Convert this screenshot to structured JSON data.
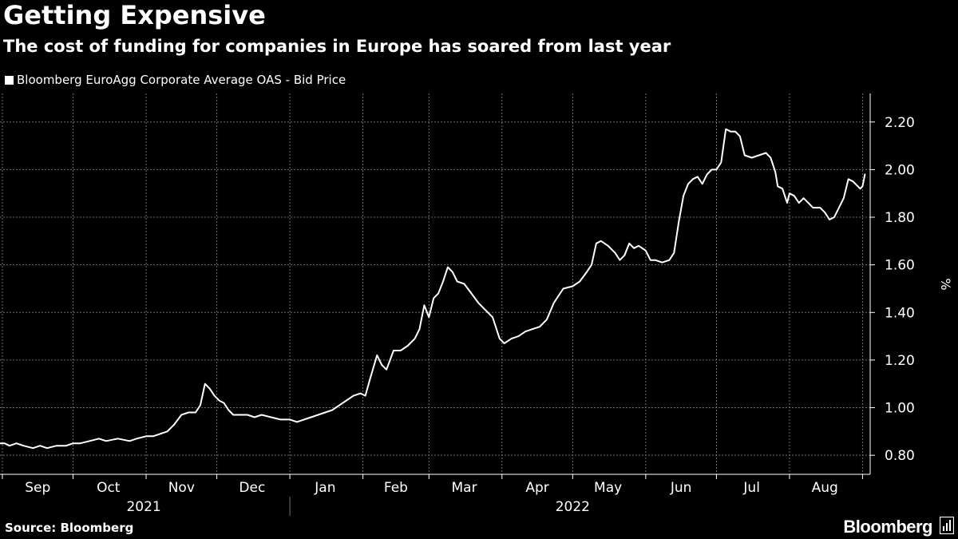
{
  "header": {
    "title": "Getting Expensive",
    "subtitle": "The cost of funding for companies in Europe has soared from last year"
  },
  "footer": {
    "source": "Source: Bloomberg",
    "brand": "Bloomberg"
  },
  "colors": {
    "background": "#000000",
    "line": "#ffffff",
    "grid": "#6e6e6e",
    "text": "#ffffff"
  },
  "chart_data": {
    "type": "line",
    "title": "Getting Expensive",
    "subtitle": "The cost of funding for companies in Europe has soared from last year",
    "ylabel": "%",
    "ylim": [
      0.72,
      2.32
    ],
    "y_ticks": [
      0.8,
      1.0,
      1.2,
      1.4,
      1.6,
      1.8,
      2.0,
      2.2
    ],
    "y_tick_labels": [
      "0.80",
      "1.00",
      "1.20",
      "1.40",
      "1.60",
      "1.80",
      "2.00",
      "2.20"
    ],
    "y_axis_position": "right",
    "x_range": [
      "2021-08-31",
      "2022-09-10"
    ],
    "x_month_ticks": [
      "2021-09-01",
      "2021-10-01",
      "2021-11-01",
      "2021-12-01",
      "2022-01-01",
      "2022-02-01",
      "2022-03-01",
      "2022-04-01",
      "2022-05-01",
      "2022-06-01",
      "2022-07-01",
      "2022-08-01",
      "2022-09-01"
    ],
    "x_month_labels": [
      {
        "label": "Sep",
        "mid": "2021-09-16"
      },
      {
        "label": "Oct",
        "mid": "2021-10-16"
      },
      {
        "label": "Nov",
        "mid": "2021-11-16"
      },
      {
        "label": "Dec",
        "mid": "2021-12-16"
      },
      {
        "label": "Jan",
        "mid": "2022-01-16"
      },
      {
        "label": "Feb",
        "mid": "2022-02-15"
      },
      {
        "label": "Mar",
        "mid": "2022-03-16"
      },
      {
        "label": "Apr",
        "mid": "2022-04-16"
      },
      {
        "label": "May",
        "mid": "2022-05-16"
      },
      {
        "label": "Jun",
        "mid": "2022-06-16"
      },
      {
        "label": "Jul",
        "mid": "2022-07-16"
      },
      {
        "label": "Aug",
        "mid": "2022-08-16"
      }
    ],
    "x_years": [
      {
        "label": "2021",
        "mid": "2021-10-31"
      },
      {
        "label": "2022",
        "mid": "2022-05-01"
      }
    ],
    "year_divider": "2022-01-01",
    "grid": true,
    "legend_position": "top-left",
    "series": [
      {
        "name": "Bloomberg EuroAgg Corporate Average OAS - Bid Price",
        "color": "#ffffff",
        "points": [
          [
            "2021-08-31",
            0.85
          ],
          [
            "2021-09-02",
            0.85
          ],
          [
            "2021-09-04",
            0.84
          ],
          [
            "2021-09-07",
            0.85
          ],
          [
            "2021-09-10",
            0.84
          ],
          [
            "2021-09-14",
            0.83
          ],
          [
            "2021-09-17",
            0.84
          ],
          [
            "2021-09-20",
            0.83
          ],
          [
            "2021-09-24",
            0.84
          ],
          [
            "2021-09-28",
            0.84
          ],
          [
            "2021-10-01",
            0.85
          ],
          [
            "2021-10-04",
            0.85
          ],
          [
            "2021-10-08",
            0.86
          ],
          [
            "2021-10-12",
            0.87
          ],
          [
            "2021-10-15",
            0.86
          ],
          [
            "2021-10-20",
            0.87
          ],
          [
            "2021-10-25",
            0.86
          ],
          [
            "2021-10-28",
            0.87
          ],
          [
            "2021-11-01",
            0.88
          ],
          [
            "2021-11-04",
            0.88
          ],
          [
            "2021-11-07",
            0.89
          ],
          [
            "2021-11-10",
            0.9
          ],
          [
            "2021-11-13",
            0.93
          ],
          [
            "2021-11-16",
            0.97
          ],
          [
            "2021-11-19",
            0.98
          ],
          [
            "2021-11-22",
            0.98
          ],
          [
            "2021-11-24",
            1.01
          ],
          [
            "2021-11-26",
            1.1
          ],
          [
            "2021-11-28",
            1.08
          ],
          [
            "2021-11-30",
            1.05
          ],
          [
            "2021-12-02",
            1.03
          ],
          [
            "2021-12-04",
            1.02
          ],
          [
            "2021-12-06",
            0.99
          ],
          [
            "2021-12-08",
            0.97
          ],
          [
            "2021-12-11",
            0.97
          ],
          [
            "2021-12-14",
            0.97
          ],
          [
            "2021-12-17",
            0.96
          ],
          [
            "2021-12-20",
            0.97
          ],
          [
            "2021-12-24",
            0.96
          ],
          [
            "2021-12-28",
            0.95
          ],
          [
            "2022-01-01",
            0.95
          ],
          [
            "2022-01-04",
            0.94
          ],
          [
            "2022-01-07",
            0.95
          ],
          [
            "2022-01-10",
            0.96
          ],
          [
            "2022-01-13",
            0.97
          ],
          [
            "2022-01-16",
            0.98
          ],
          [
            "2022-01-19",
            0.99
          ],
          [
            "2022-01-22",
            1.01
          ],
          [
            "2022-01-25",
            1.03
          ],
          [
            "2022-01-28",
            1.05
          ],
          [
            "2022-01-31",
            1.06
          ],
          [
            "2022-02-02",
            1.05
          ],
          [
            "2022-02-04",
            1.12
          ],
          [
            "2022-02-07",
            1.22
          ],
          [
            "2022-02-09",
            1.18
          ],
          [
            "2022-02-11",
            1.16
          ],
          [
            "2022-02-14",
            1.24
          ],
          [
            "2022-02-17",
            1.24
          ],
          [
            "2022-02-20",
            1.26
          ],
          [
            "2022-02-23",
            1.29
          ],
          [
            "2022-02-25",
            1.33
          ],
          [
            "2022-02-27",
            1.43
          ],
          [
            "2022-03-01",
            1.38
          ],
          [
            "2022-03-03",
            1.46
          ],
          [
            "2022-03-05",
            1.48
          ],
          [
            "2022-03-07",
            1.53
          ],
          [
            "2022-03-09",
            1.59
          ],
          [
            "2022-03-11",
            1.57
          ],
          [
            "2022-03-13",
            1.53
          ],
          [
            "2022-03-16",
            1.52
          ],
          [
            "2022-03-19",
            1.48
          ],
          [
            "2022-03-22",
            1.44
          ],
          [
            "2022-03-25",
            1.41
          ],
          [
            "2022-03-28",
            1.38
          ],
          [
            "2022-03-31",
            1.29
          ],
          [
            "2022-04-02",
            1.27
          ],
          [
            "2022-04-05",
            1.29
          ],
          [
            "2022-04-08",
            1.3
          ],
          [
            "2022-04-11",
            1.32
          ],
          [
            "2022-04-14",
            1.33
          ],
          [
            "2022-04-17",
            1.34
          ],
          [
            "2022-04-20",
            1.37
          ],
          [
            "2022-04-23",
            1.44
          ],
          [
            "2022-04-25",
            1.47
          ],
          [
            "2022-04-27",
            1.5
          ],
          [
            "2022-05-01",
            1.51
          ],
          [
            "2022-05-04",
            1.53
          ],
          [
            "2022-05-07",
            1.57
          ],
          [
            "2022-05-09",
            1.6
          ],
          [
            "2022-05-11",
            1.69
          ],
          [
            "2022-05-13",
            1.7
          ],
          [
            "2022-05-16",
            1.68
          ],
          [
            "2022-05-19",
            1.65
          ],
          [
            "2022-05-21",
            1.62
          ],
          [
            "2022-05-23",
            1.64
          ],
          [
            "2022-05-25",
            1.69
          ],
          [
            "2022-05-27",
            1.67
          ],
          [
            "2022-05-29",
            1.68
          ],
          [
            "2022-06-01",
            1.66
          ],
          [
            "2022-06-03",
            1.62
          ],
          [
            "2022-06-05",
            1.62
          ],
          [
            "2022-06-08",
            1.61
          ],
          [
            "2022-06-11",
            1.62
          ],
          [
            "2022-06-13",
            1.65
          ],
          [
            "2022-06-15",
            1.78
          ],
          [
            "2022-06-17",
            1.89
          ],
          [
            "2022-06-19",
            1.94
          ],
          [
            "2022-06-21",
            1.96
          ],
          [
            "2022-06-23",
            1.97
          ],
          [
            "2022-06-25",
            1.94
          ],
          [
            "2022-06-27",
            1.98
          ],
          [
            "2022-06-29",
            2.0
          ],
          [
            "2022-07-01",
            2.0
          ],
          [
            "2022-07-03",
            2.03
          ],
          [
            "2022-07-05",
            2.17
          ],
          [
            "2022-07-07",
            2.16
          ],
          [
            "2022-07-09",
            2.16
          ],
          [
            "2022-07-11",
            2.14
          ],
          [
            "2022-07-13",
            2.06
          ],
          [
            "2022-07-16",
            2.05
          ],
          [
            "2022-07-19",
            2.06
          ],
          [
            "2022-07-22",
            2.07
          ],
          [
            "2022-07-24",
            2.05
          ],
          [
            "2022-07-26",
            1.99
          ],
          [
            "2022-07-27",
            1.93
          ],
          [
            "2022-07-29",
            1.92
          ],
          [
            "2022-07-31",
            1.86
          ],
          [
            "2022-08-01",
            1.9
          ],
          [
            "2022-08-03",
            1.89
          ],
          [
            "2022-08-05",
            1.86
          ],
          [
            "2022-08-07",
            1.88
          ],
          [
            "2022-08-09",
            1.86
          ],
          [
            "2022-08-11",
            1.84
          ],
          [
            "2022-08-14",
            1.84
          ],
          [
            "2022-08-16",
            1.82
          ],
          [
            "2022-08-18",
            1.79
          ],
          [
            "2022-08-20",
            1.8
          ],
          [
            "2022-08-22",
            1.84
          ],
          [
            "2022-08-24",
            1.88
          ],
          [
            "2022-08-26",
            1.96
          ],
          [
            "2022-08-28",
            1.95
          ],
          [
            "2022-08-30",
            1.93
          ],
          [
            "2022-08-31",
            1.92
          ],
          [
            "2022-09-01",
            1.93
          ],
          [
            "2022-09-02",
            1.98
          ]
        ]
      }
    ]
  }
}
